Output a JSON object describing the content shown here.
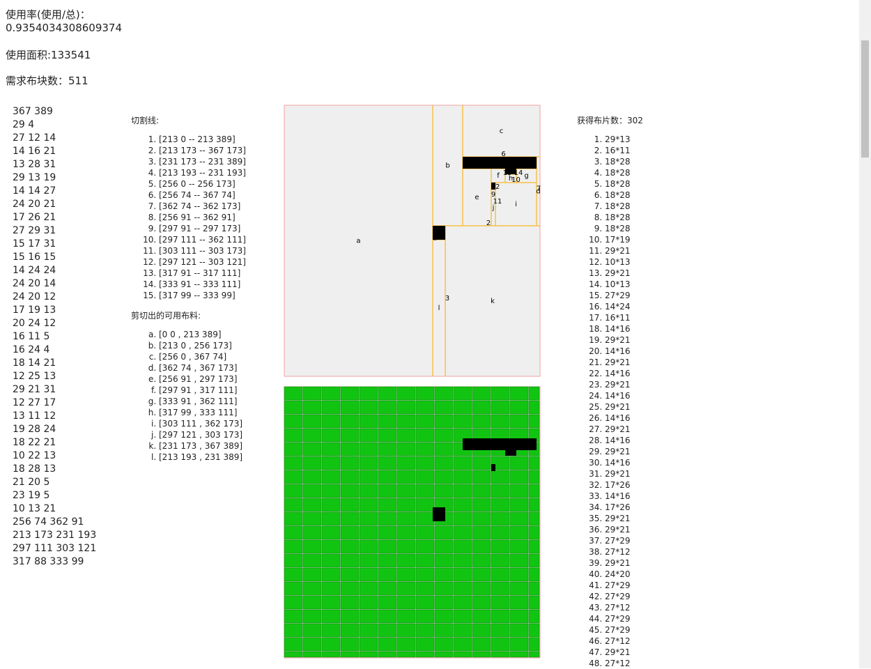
{
  "header": {
    "rate_label": "使用率(使用/总)：",
    "rate": "0.9354034308609374",
    "area": "使用面积:133541",
    "demand": "需求布块数：511"
  },
  "input_lines": [
    "367 389",
    "29 4",
    "27 12 14",
    "14 16 21",
    "13 28 31",
    "29 13 19",
    "14 14 27",
    "24 20 21",
    "17 26 21",
    "27 29 31",
    "15 17 31",
    "15 16 15",
    "14 24 24",
    "24 20 14",
    "24 20 12",
    "17 19 13",
    "20 24 12",
    "16 11 5",
    "16 24 4",
    "18 14 21",
    "12 25 13",
    "29 21 31",
    "12 27 17",
    "13 11 12",
    "19 28 24",
    "18 22 21",
    "10 22 13",
    "18 28 13",
    "21 20 5",
    "23 19 5",
    "10 13 21",
    "256 74 362 91",
    "213 173 231 193",
    "297 111 303 121",
    "317 88 333 99"
  ],
  "cut_title": "切割线:",
  "cuts": [
    "[213 0 -- 213 389]",
    "[213 173 -- 367 173]",
    "[231 173 -- 231 389]",
    "[213 193 -- 231 193]",
    "[256 0 -- 256 173]",
    "[256 74 -- 367 74]",
    "[362 74 -- 362 173]",
    "[256 91 -- 362 91]",
    "[297 91 -- 297 173]",
    "[297 111 -- 362 111]",
    "[303 111 -- 303 173]",
    "[297 121 -- 303 121]",
    "[317 91 -- 317 111]",
    "[333 91 -- 333 111]",
    "[317 99 -- 333 99]"
  ],
  "pieces_title": "剪切出的可用布料:",
  "pieces": [
    "[0 0 , 213 389]",
    "[213 0 , 256 173]",
    "[256 0 , 367 74]",
    "[362 74 , 367 173]",
    "[256 91 , 297 173]",
    "[297 91 , 317 111]",
    "[333 91 , 362 111]",
    "[317 99 , 333 111]",
    "[303 111 , 362 173]",
    "[297 121 , 303 173]",
    "[231 173 , 367 389]",
    "[213 193 , 231 389]"
  ],
  "piece_letters": [
    "a",
    "b",
    "c",
    "d",
    "e",
    "f",
    "g",
    "h",
    "i",
    "j",
    "k",
    "l"
  ],
  "result_title": "获得布片数：302",
  "results": [
    "29*13",
    "16*11",
    "18*28",
    "18*28",
    "18*28",
    "18*28",
    "18*28",
    "18*28",
    "18*28",
    "17*19",
    "29*21",
    "10*13",
    "29*21",
    "10*13",
    "27*29",
    "14*24",
    "16*11",
    "14*16",
    "29*21",
    "14*16",
    "29*21",
    "14*16",
    "29*21",
    "14*16",
    "29*21",
    "14*16",
    "29*21",
    "14*16",
    "29*21",
    "14*16",
    "29*21",
    "17*26",
    "14*16",
    "17*26",
    "29*21",
    "29*21",
    "27*29",
    "27*12",
    "29*21",
    "24*20",
    "27*29",
    "27*29",
    "27*12",
    "27*29",
    "27*29",
    "27*12",
    "29*21",
    "27*12"
  ]
}
